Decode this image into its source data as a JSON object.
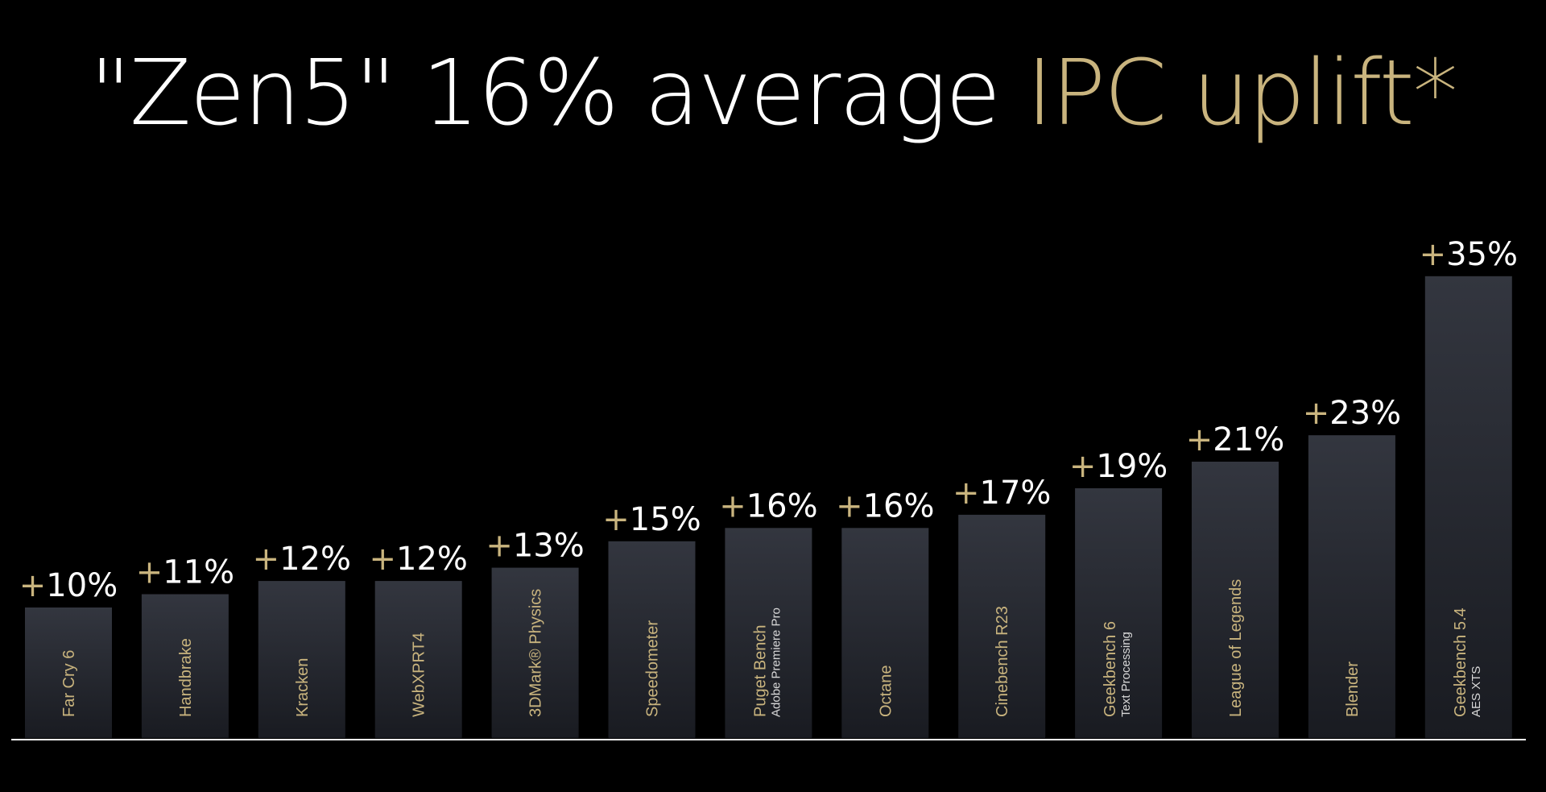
{
  "title": {
    "part1": "\"Zen5\" 16% average ",
    "part2": "IPC uplift",
    "part3": "*"
  },
  "colors": {
    "background": "#000000",
    "accent": "#c9b47e",
    "bar_top": "#33363f",
    "bar_bottom": "#191b21",
    "baseline": "#ffffff"
  },
  "chart_data": {
    "type": "bar",
    "title": "\"Zen5\" 16% average IPC uplift*",
    "categories": [
      [
        "Far Cry 6"
      ],
      [
        "Handbrake"
      ],
      [
        "Kracken"
      ],
      [
        "WebXPRT4"
      ],
      [
        "3DMark® Physics"
      ],
      [
        "Speedometer"
      ],
      [
        "Puget Bench",
        "Adobe Premiere Pro"
      ],
      [
        "Octane"
      ],
      [
        "Cinebench R23"
      ],
      [
        "Geekbench 6",
        "Text Processing"
      ],
      [
        "League of Legends"
      ],
      [
        "Blender"
      ],
      [
        "Geekbench 5.4",
        "AES XTS"
      ]
    ],
    "values": [
      10,
      11,
      12,
      12,
      13,
      15,
      16,
      16,
      17,
      19,
      21,
      23,
      35
    ],
    "value_labels": [
      "+10%",
      "+11%",
      "+12%",
      "+12%",
      "+13%",
      "+15%",
      "+16%",
      "+16%",
      "+17%",
      "+19%",
      "+21%",
      "+23%",
      "+35%"
    ],
    "ylim": [
      0,
      40
    ],
    "grid": false,
    "legend": "none",
    "xlabel": "",
    "ylabel": ""
  }
}
